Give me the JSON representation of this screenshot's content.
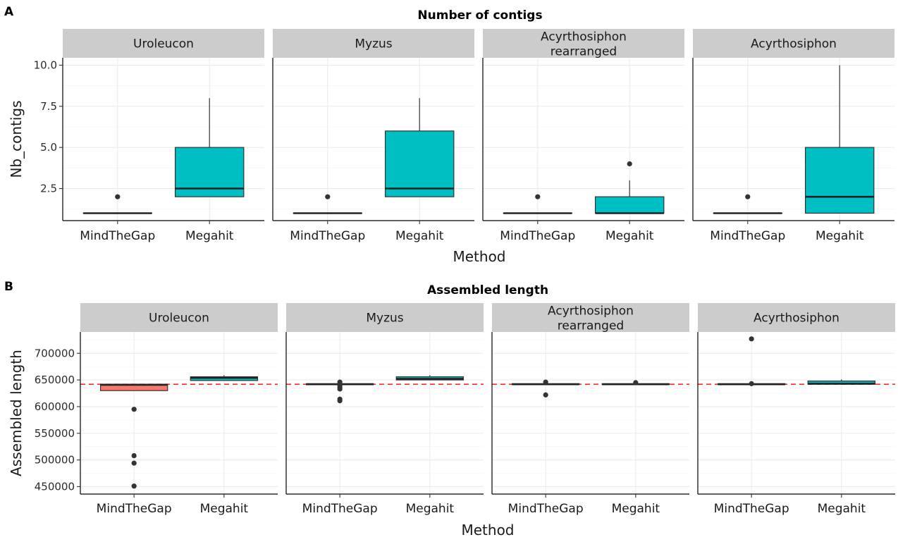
{
  "panel_letters": [
    "A",
    "B"
  ],
  "colors": {
    "MindTheGap": "#F8766D",
    "Megahit": "#00BFC4",
    "reference_line": "#FF2A2A",
    "strip": "#CCCCCC"
  },
  "chart_data": [
    {
      "type": "boxplot",
      "title": "Number of contigs",
      "xlabel": "Method",
      "ylabel": "Nb_contigs",
      "categories": [
        "MindTheGap",
        "Megahit"
      ],
      "ylim": [
        0.55,
        10.45
      ],
      "y_ticks": [
        2.5,
        5.0,
        7.5,
        10.0
      ],
      "y_tick_labels": [
        "2.5",
        "5.0",
        "7.5",
        "10.0"
      ],
      "grid": true,
      "facets": [
        {
          "label": "Uroleucon",
          "boxes": [
            {
              "method": "MindTheGap",
              "q1": 1,
              "median": 1,
              "q3": 1,
              "lower": 1,
              "upper": 1,
              "outliers": [
                2
              ]
            },
            {
              "method": "Megahit",
              "q1": 2,
              "median": 2.5,
              "q3": 5,
              "lower": 2,
              "upper": 8,
              "outliers": []
            }
          ]
        },
        {
          "label": "Myzus",
          "boxes": [
            {
              "method": "MindTheGap",
              "q1": 1,
              "median": 1,
              "q3": 1,
              "lower": 1,
              "upper": 1,
              "outliers": [
                2
              ]
            },
            {
              "method": "Megahit",
              "q1": 2,
              "median": 2.5,
              "q3": 6,
              "lower": 2,
              "upper": 8,
              "outliers": []
            }
          ]
        },
        {
          "label": "Acyrthosiphon\nrearranged",
          "boxes": [
            {
              "method": "MindTheGap",
              "q1": 1,
              "median": 1,
              "q3": 1,
              "lower": 1,
              "upper": 1,
              "outliers": [
                2
              ]
            },
            {
              "method": "Megahit",
              "q1": 1,
              "median": 1,
              "q3": 2,
              "lower": 1,
              "upper": 3,
              "outliers": [
                4
              ]
            }
          ]
        },
        {
          "label": "Acyrthosiphon",
          "boxes": [
            {
              "method": "MindTheGap",
              "q1": 1,
              "median": 1,
              "q3": 1,
              "lower": 1,
              "upper": 1,
              "outliers": [
                2
              ]
            },
            {
              "method": "Megahit",
              "q1": 1,
              "median": 2,
              "q3": 5,
              "lower": 1,
              "upper": 10,
              "outliers": []
            }
          ]
        }
      ]
    },
    {
      "type": "boxplot",
      "title": "Assembled length",
      "xlabel": "Method",
      "ylabel": "Assembled length",
      "categories": [
        "MindTheGap",
        "Megahit"
      ],
      "ylim": [
        436000,
        740000
      ],
      "y_ticks": [
        450000,
        500000,
        550000,
        600000,
        650000,
        700000
      ],
      "y_tick_labels": [
        "450000",
        "500000",
        "550000",
        "600000",
        "650000",
        "700000"
      ],
      "reference_line": 642000,
      "grid": true,
      "facets": [
        {
          "label": "Uroleucon",
          "boxes": [
            {
              "method": "MindTheGap",
              "q1": 630000,
              "median": 641000,
              "q3": 642000,
              "lower": 630000,
              "upper": 642000,
              "outliers": [
                595000,
                508000,
                494000,
                451000
              ]
            },
            {
              "method": "Megahit",
              "q1": 649000,
              "median": 654000,
              "q3": 656000,
              "lower": 649000,
              "upper": 659000,
              "outliers": []
            }
          ]
        },
        {
          "label": "Myzus",
          "boxes": [
            {
              "method": "MindTheGap",
              "q1": 641000,
              "median": 642000,
              "q3": 643000,
              "lower": 641000,
              "upper": 643000,
              "outliers": [
                646000,
                640000,
                636000,
                633000,
                614000,
                611000
              ]
            },
            {
              "method": "Megahit",
              "q1": 650000,
              "median": 652000,
              "q3": 656000,
              "lower": 650000,
              "upper": 659000,
              "outliers": []
            }
          ]
        },
        {
          "label": "Acyrthosiphon\nrearranged",
          "boxes": [
            {
              "method": "MindTheGap",
              "q1": 641500,
              "median": 642000,
              "q3": 643000,
              "lower": 641500,
              "upper": 643000,
              "outliers": [
                646000,
                622000
              ]
            },
            {
              "method": "Megahit",
              "q1": 641500,
              "median": 642000,
              "q3": 643000,
              "lower": 641500,
              "upper": 643000,
              "outliers": [
                645000
              ]
            }
          ]
        },
        {
          "label": "Acyrthosiphon",
          "boxes": [
            {
              "method": "MindTheGap",
              "q1": 641500,
              "median": 642000,
              "q3": 643000,
              "lower": 641500,
              "upper": 643000,
              "outliers": [
                727000,
                643000
              ]
            },
            {
              "method": "Megahit",
              "q1": 642000,
              "median": 643000,
              "q3": 648000,
              "lower": 642000,
              "upper": 651000,
              "outliers": []
            }
          ]
        }
      ]
    }
  ]
}
